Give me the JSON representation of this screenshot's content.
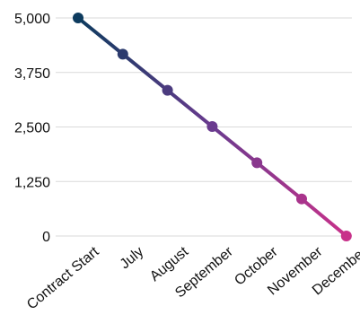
{
  "chart_data": {
    "type": "line",
    "title": "",
    "xlabel": "",
    "ylabel": "",
    "categories": [
      "Contract Start",
      "July",
      "August",
      "September",
      "October",
      "November",
      "December"
    ],
    "series": [
      {
        "values": [
          5000,
          4170,
          3340,
          2510,
          1680,
          850,
          0
        ]
      }
    ],
    "y_ticks": [
      "5,000",
      "3,750",
      "2,500",
      "1,250",
      "0"
    ],
    "y_tick_values": [
      5000,
      3750,
      2500,
      1250,
      0
    ],
    "ylim": [
      0,
      5000
    ],
    "grid": true,
    "legend": "none",
    "colors": {
      "start": "#0d3b5e",
      "mid": "#6a3b8f",
      "end": "#c8318a",
      "grid": "#d9d9d9"
    }
  }
}
